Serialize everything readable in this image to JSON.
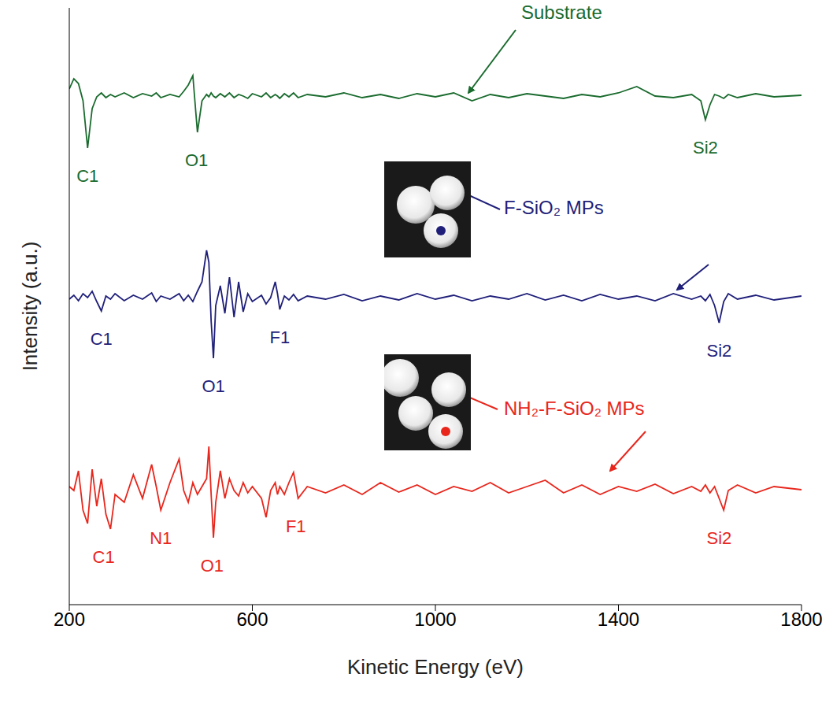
{
  "chart_data": {
    "type": "line",
    "xlabel": "Kinetic Energy (eV)",
    "ylabel": "Intensity (a.u.)",
    "xlim": [
      200,
      1800
    ],
    "xticks": [
      200,
      600,
      1000,
      1400,
      1800
    ],
    "ylim": [
      0,
      7.58
    ],
    "grid": false,
    "tick_labels": "x",
    "x": [
      200,
      210,
      220,
      230,
      240,
      250,
      260,
      270,
      280,
      290,
      300,
      320,
      340,
      360,
      380,
      390,
      400,
      420,
      440,
      450,
      460,
      470,
      480,
      490,
      500,
      505,
      510,
      515,
      520,
      530,
      540,
      550,
      560,
      570,
      580,
      590,
      600,
      620,
      630,
      640,
      650,
      655,
      660,
      670,
      680,
      690,
      700,
      720,
      760,
      800,
      840,
      880,
      920,
      960,
      1000,
      1040,
      1080,
      1120,
      1160,
      1200,
      1240,
      1280,
      1320,
      1360,
      1400,
      1440,
      1480,
      1520,
      1560,
      1580,
      1590,
      1600,
      1610,
      1620,
      1630,
      1640,
      1660,
      1700,
      1740,
      1800
    ],
    "series": [
      {
        "name": "Substrate",
        "color": "#1a6b2e",
        "values": [
          6.55,
          6.68,
          6.62,
          6.4,
          5.8,
          6.3,
          6.45,
          6.5,
          6.44,
          6.48,
          6.45,
          6.5,
          6.44,
          6.49,
          6.46,
          6.5,
          6.44,
          6.48,
          6.45,
          6.52,
          6.6,
          6.72,
          6.0,
          6.4,
          6.48,
          6.45,
          6.5,
          6.46,
          6.44,
          6.49,
          6.45,
          6.5,
          6.44,
          6.48,
          6.46,
          6.43,
          6.49,
          6.45,
          6.5,
          6.44,
          6.48,
          6.46,
          6.43,
          6.49,
          6.45,
          6.5,
          6.44,
          6.48,
          6.45,
          6.5,
          6.44,
          6.48,
          6.43,
          6.49,
          6.45,
          6.5,
          6.4,
          6.48,
          6.44,
          6.49,
          6.46,
          6.43,
          6.48,
          6.45,
          6.5,
          6.58,
          6.46,
          6.44,
          6.48,
          6.4,
          6.16,
          6.35,
          6.48,
          6.46,
          6.43,
          6.48,
          6.44,
          6.49,
          6.45,
          6.47
        ],
        "peaks": [
          {
            "label": "C1",
            "x": 240
          },
          {
            "label": "O1",
            "x": 478
          },
          {
            "label": "Si2",
            "x": 1590
          }
        ]
      },
      {
        "name": "F-SiO₂ MPs",
        "color": "#1f1f7a",
        "values": [
          3.88,
          3.93,
          3.86,
          3.95,
          3.9,
          3.98,
          3.85,
          3.73,
          3.92,
          3.88,
          3.95,
          3.86,
          3.93,
          3.88,
          3.96,
          3.85,
          3.92,
          3.88,
          3.95,
          3.86,
          3.93,
          3.85,
          3.98,
          4.1,
          4.5,
          4.35,
          3.6,
          3.13,
          3.8,
          4.05,
          3.7,
          4.16,
          3.65,
          4.1,
          3.72,
          3.95,
          3.85,
          3.93,
          3.82,
          3.9,
          4.1,
          3.95,
          3.75,
          3.92,
          3.87,
          3.94,
          3.86,
          3.92,
          3.88,
          3.94,
          3.86,
          3.92,
          3.87,
          3.95,
          3.88,
          3.93,
          3.86,
          3.92,
          3.88,
          3.95,
          3.87,
          3.93,
          3.86,
          3.94,
          3.88,
          3.92,
          3.86,
          3.95,
          3.88,
          3.92,
          3.86,
          3.94,
          3.8,
          3.58,
          3.85,
          3.95,
          3.88,
          3.93,
          3.87,
          3.92
        ],
        "peaks": [
          {
            "label": "C1",
            "x": 270
          },
          {
            "label": "O1",
            "x": 515
          },
          {
            "label": "F1",
            "x": 660
          },
          {
            "label": "Si2",
            "x": 1620
          }
        ]
      },
      {
        "name": "NH₂-F-SiO₂ MPs",
        "color": "#e8261c",
        "values": [
          1.5,
          1.45,
          1.7,
          1.2,
          1.03,
          1.72,
          1.25,
          1.6,
          1.15,
          0.96,
          1.4,
          1.3,
          1.65,
          1.35,
          1.78,
          1.5,
          1.2,
          1.55,
          1.85,
          1.45,
          1.3,
          1.55,
          1.4,
          1.5,
          1.6,
          2.01,
          1.4,
          0.85,
          1.3,
          1.7,
          1.35,
          1.6,
          1.45,
          1.38,
          1.55,
          1.42,
          1.5,
          1.35,
          1.11,
          1.45,
          1.55,
          1.4,
          1.5,
          1.4,
          1.55,
          1.68,
          1.35,
          1.5,
          1.42,
          1.52,
          1.4,
          1.55,
          1.43,
          1.52,
          1.4,
          1.5,
          1.44,
          1.55,
          1.42,
          1.5,
          1.58,
          1.42,
          1.52,
          1.4,
          1.5,
          1.44,
          1.53,
          1.41,
          1.5,
          1.44,
          1.52,
          1.42,
          1.5,
          1.35,
          1.2,
          1.45,
          1.52,
          1.42,
          1.5,
          1.46
        ],
        "peaks": [
          {
            "label": "C1",
            "x": 275
          },
          {
            "label": "N1",
            "x": 400
          },
          {
            "label": "O1",
            "x": 512
          },
          {
            "label": "F1",
            "x": 695
          },
          {
            "label": "Si2",
            "x": 1620
          }
        ]
      }
    ]
  }
}
